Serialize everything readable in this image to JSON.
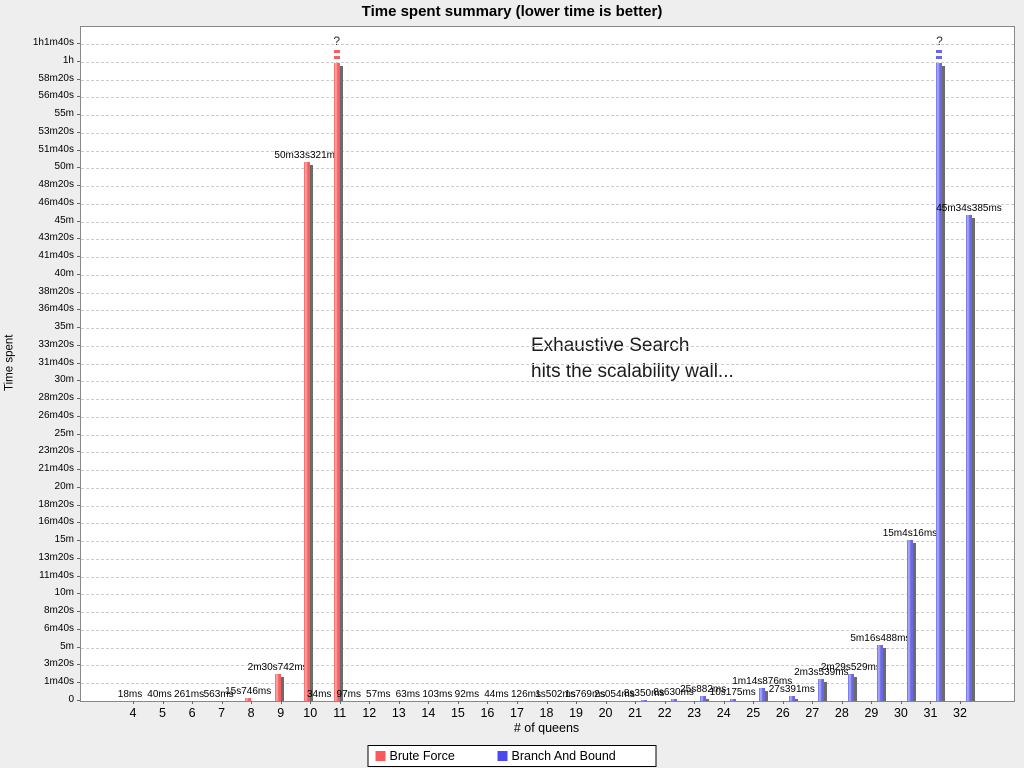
{
  "title": "Time spent summary (lower time is better)",
  "annotation": {
    "line1": "Exhaustive Search",
    "line2": "hits the scalability wall..."
  },
  "legend": {
    "entries": [
      {
        "label": "Brute Force",
        "color": "#f95a5a"
      },
      {
        "label": "Branch And Bound",
        "color": "#4a4af0"
      }
    ]
  },
  "chart_data": {
    "type": "bar",
    "title": "Time spent summary (lower time is better)",
    "xlabel": "# of queens",
    "ylabel": "Time spent",
    "grid": true,
    "legend_position": "bottom",
    "categories": [
      4,
      5,
      6,
      7,
      8,
      9,
      10,
      11,
      12,
      13,
      14,
      15,
      16,
      17,
      18,
      19,
      20,
      21,
      22,
      23,
      24,
      25,
      26,
      27,
      28,
      29,
      30,
      31,
      32
    ],
    "ylim_seconds": [
      0,
      3700
    ],
    "y_tick_step_seconds": 100,
    "y_tick_labels": [
      "0",
      "1m40s",
      "3m20s",
      "5m",
      "6m40s",
      "8m20s",
      "10m",
      "11m40s",
      "13m20s",
      "15m",
      "16m40s",
      "18m20s",
      "20m",
      "21m40s",
      "23m20s",
      "25m",
      "26m40s",
      "28m20s",
      "30m",
      "31m40s",
      "33m20s",
      "35m",
      "36m40s",
      "38m20s",
      "40m",
      "41m40s",
      "43m20s",
      "45m",
      "46m40s",
      "48m20s",
      "50m",
      "51m40s",
      "53m20s",
      "55m",
      "56m40s",
      "58m20s",
      "1h",
      "1h1m40s"
    ],
    "series": [
      {
        "name": "Brute Force",
        "color": "#f55f5f",
        "highlight_color": "#ffadad",
        "points": [
          {
            "q": 4,
            "seconds": 0.018,
            "label": "18ms"
          },
          {
            "q": 5,
            "seconds": 0.04,
            "label": "40ms"
          },
          {
            "q": 6,
            "seconds": 0.261,
            "label": "261ms"
          },
          {
            "q": 7,
            "seconds": 0.563,
            "label": "563ms"
          },
          {
            "q": 8,
            "seconds": 15.746,
            "label": "15s746ms"
          },
          {
            "q": 9,
            "seconds": 150.742,
            "label": "2m30s742ms"
          },
          {
            "q": 10,
            "seconds": 3033.321,
            "label": "50m33s321ms"
          },
          {
            "q": 11,
            "overflow": true,
            "label": "?"
          }
        ]
      },
      {
        "name": "Branch And Bound",
        "color": "#6868e8",
        "highlight_color": "#b3b3f5",
        "points": [
          {
            "q": 10,
            "seconds": 0.034,
            "label": "34ms"
          },
          {
            "q": 11,
            "seconds": 0.097,
            "label": "97ms"
          },
          {
            "q": 12,
            "seconds": 0.057,
            "label": "57ms"
          },
          {
            "q": 13,
            "seconds": 0.063,
            "label": "63ms"
          },
          {
            "q": 14,
            "seconds": 0.103,
            "label": "103ms"
          },
          {
            "q": 15,
            "seconds": 0.092,
            "label": "92ms"
          },
          {
            "q": 16,
            "seconds": 0.044,
            "label": "44ms"
          },
          {
            "q": 17,
            "seconds": 0.126,
            "label": "126ms"
          },
          {
            "q": 18,
            "seconds": 1.502,
            "label": "1s502ms"
          },
          {
            "q": 19,
            "seconds": 1.769,
            "label": "1s769ms"
          },
          {
            "q": 20,
            "seconds": 2.054,
            "label": "2s054ms"
          },
          {
            "q": 21,
            "seconds": 8.35,
            "label": "8s350ms"
          },
          {
            "q": 22,
            "seconds": 8.63,
            "label": "8s630ms"
          },
          {
            "q": 23,
            "seconds": 25.882,
            "label": "25s882ms"
          },
          {
            "q": 24,
            "seconds": 10.175,
            "label": "10s175ms"
          },
          {
            "q": 25,
            "seconds": 74.876,
            "label": "1m14s876ms"
          },
          {
            "q": 26,
            "seconds": 27.391,
            "label": "27s391ms"
          },
          {
            "q": 27,
            "seconds": 123.539,
            "label": "2m3s539ms"
          },
          {
            "q": 28,
            "seconds": 149.529,
            "label": "2m29s529ms"
          },
          {
            "q": 29,
            "seconds": 316.488,
            "label": "5m16s488ms"
          },
          {
            "q": 30,
            "seconds": 904.016,
            "label": "15m4s16ms"
          },
          {
            "q": 31,
            "overflow": true,
            "label": "?"
          },
          {
            "q": 32,
            "seconds": 2734.385,
            "label": "45m34s385ms"
          }
        ]
      }
    ]
  }
}
